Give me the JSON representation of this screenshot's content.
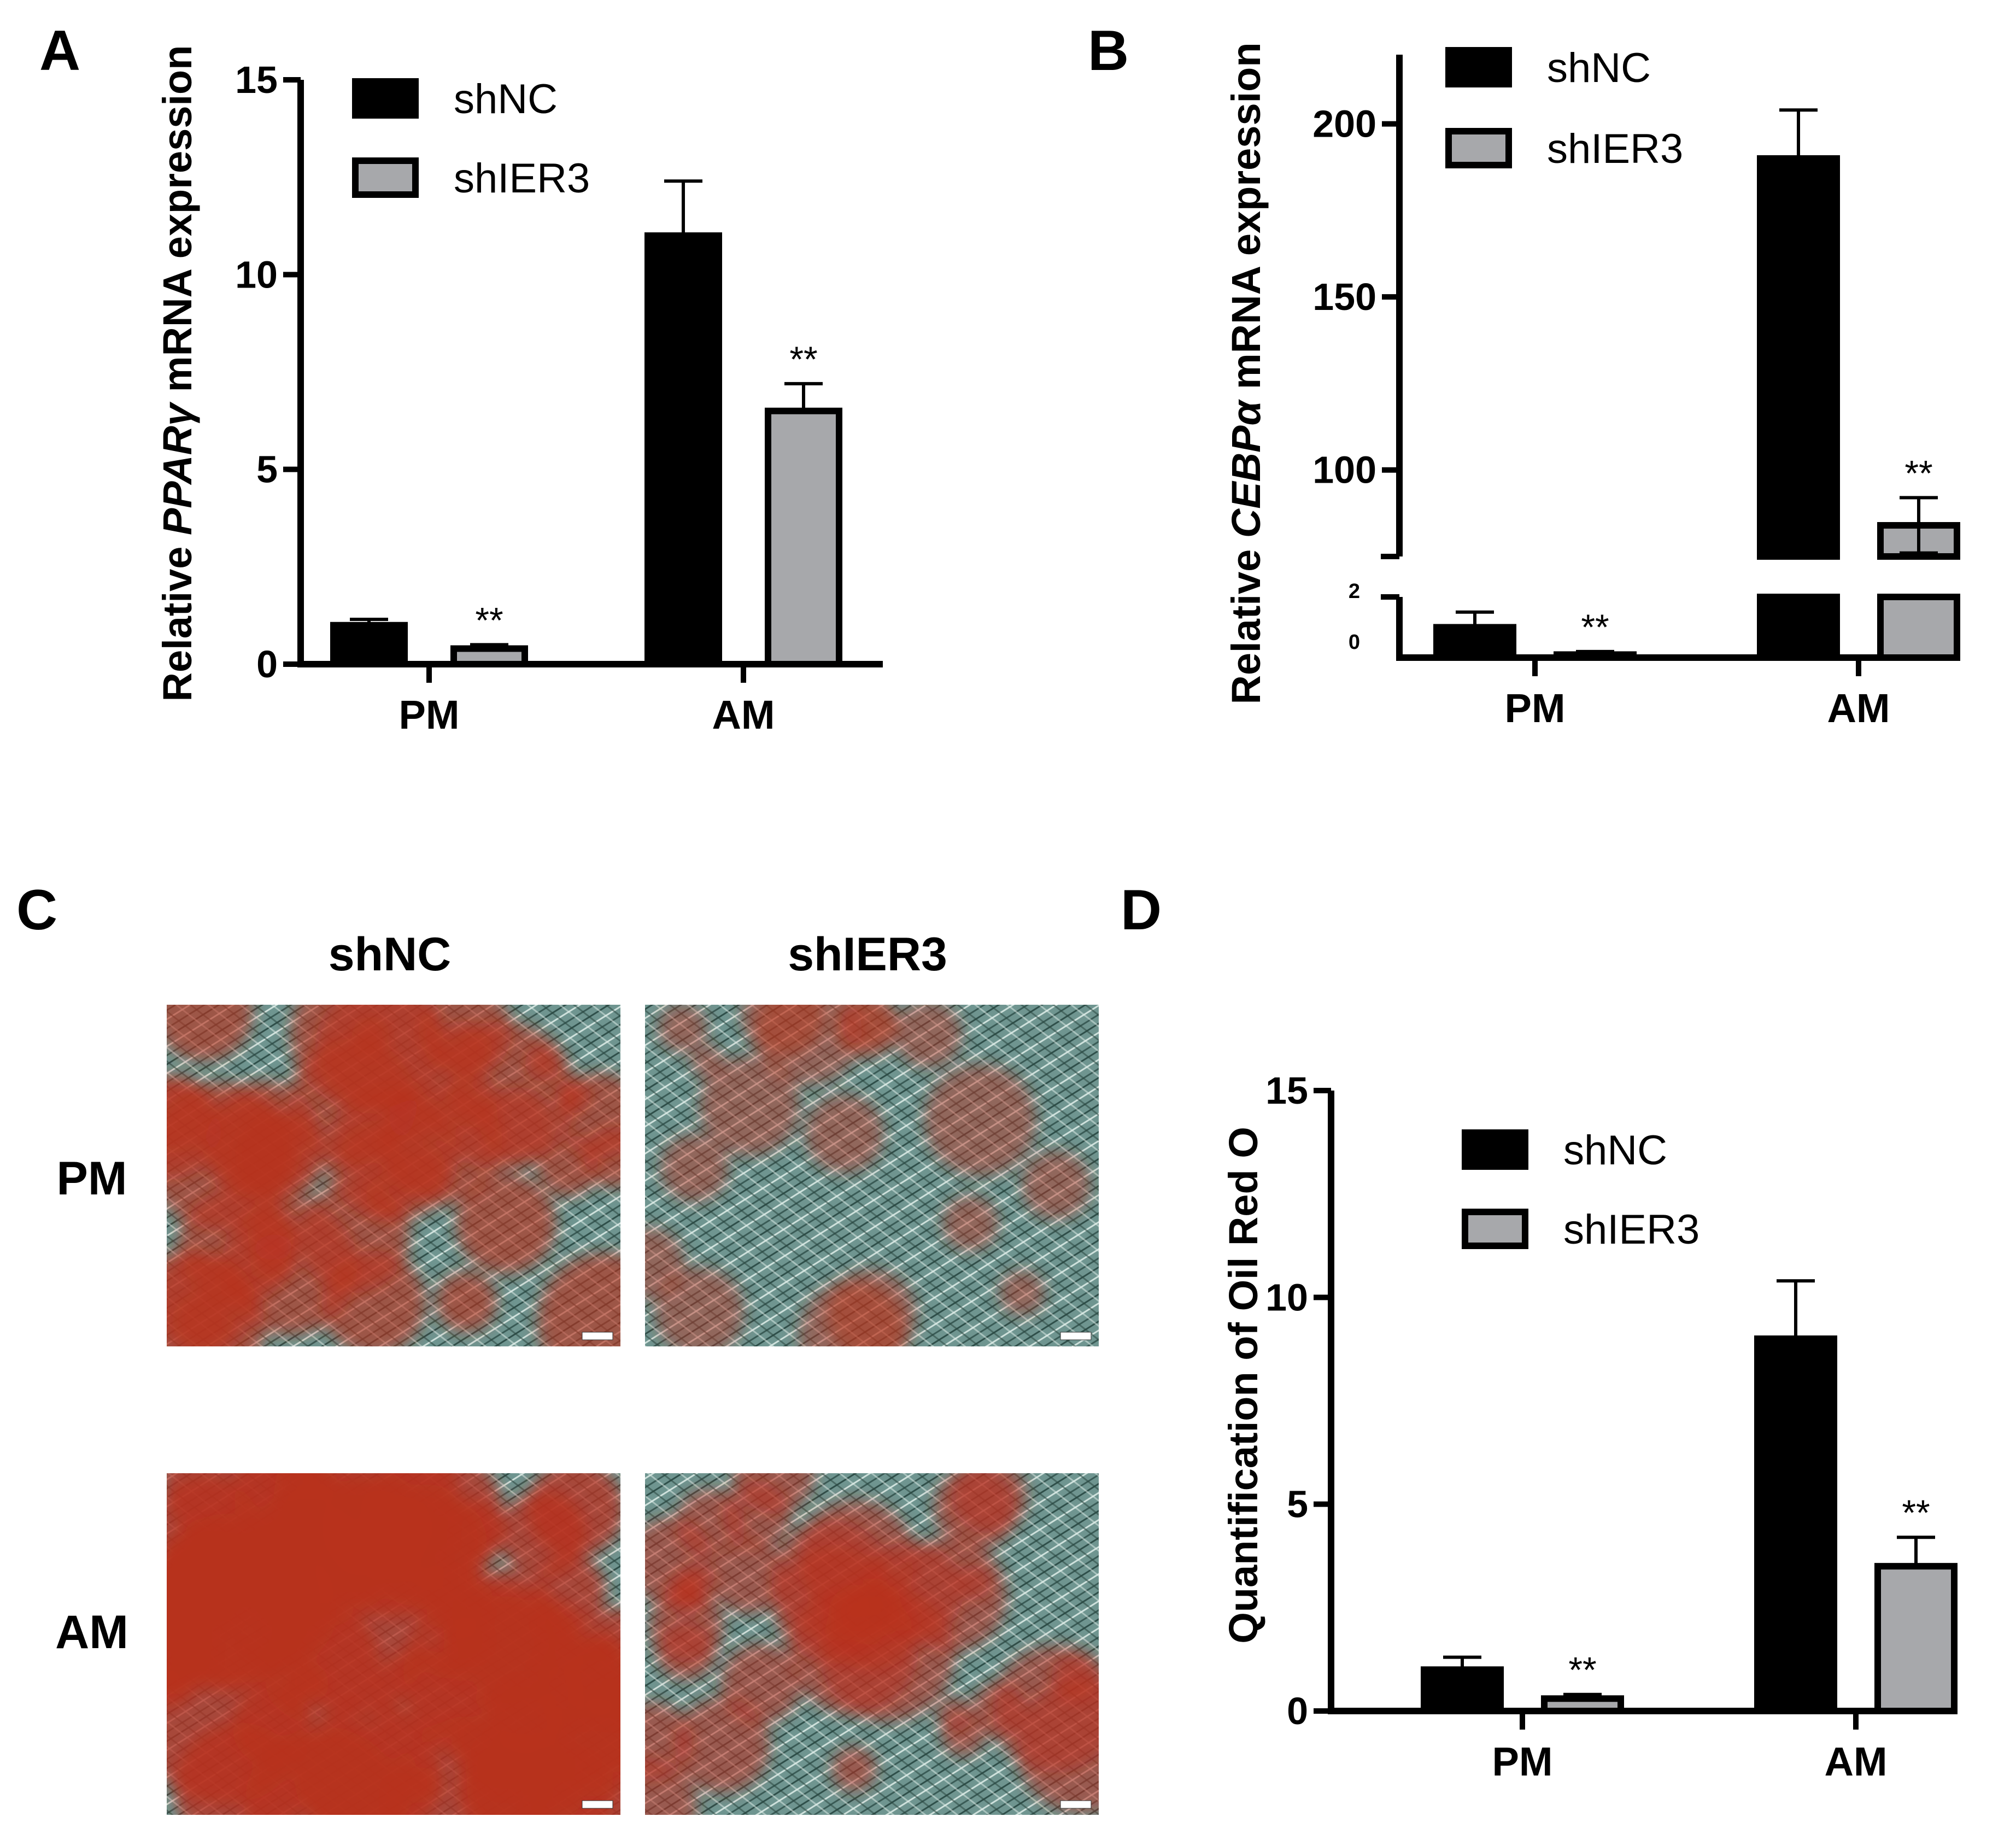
{
  "chart_data": [
    {
      "panel": "A",
      "type": "bar",
      "ylabel_prefix": "Relative ",
      "ylabel_italic": "PPARγ",
      "ylabel_suffix": " mRNA expression",
      "categories": [
        "PM",
        "AM"
      ],
      "ylim": [
        0,
        15
      ],
      "yticks": [
        "0",
        "5",
        "10",
        "15"
      ],
      "series": [
        {
          "name": "shNC",
          "values": [
            1.0,
            11.0
          ],
          "errors": [
            0.15,
            1.4
          ],
          "significance": [
            "",
            ""
          ]
        },
        {
          "name": "shIER3",
          "values": [
            0.4,
            6.5
          ],
          "errors": [
            0.1,
            0.7
          ],
          "significance": [
            "**",
            "**"
          ]
        }
      ],
      "legend_position": "top-left"
    },
    {
      "panel": "B",
      "type": "bar",
      "ylabel_prefix": "Relative ",
      "ylabel_italic": "CEBPα",
      "ylabel_suffix": " mRNA expression",
      "categories": [
        "PM",
        "AM"
      ],
      "broken_axis": {
        "lower_range": [
          0,
          2
        ],
        "upper_range": [
          75,
          220
        ]
      },
      "yticks_upper": [
        "100",
        "150",
        "200"
      ],
      "yticks_lower": [
        "0",
        "2"
      ],
      "series": [
        {
          "name": "shNC",
          "values": [
            1.0,
            190
          ],
          "errors": [
            0.5,
            14
          ],
          "significance": [
            "",
            ""
          ]
        },
        {
          "name": "shIER3",
          "values": [
            0.1,
            84
          ],
          "errors": [
            0.1,
            8
          ],
          "significance": [
            "**",
            "**"
          ]
        }
      ],
      "legend_position": "top-left"
    },
    {
      "panel": "D",
      "type": "bar",
      "ylabel": "Quantification of Oil Red O",
      "categories": [
        "PM",
        "AM"
      ],
      "ylim": [
        0,
        15
      ],
      "yticks": [
        "0",
        "5",
        "10",
        "15"
      ],
      "series": [
        {
          "name": "shNC",
          "values": [
            1.0,
            9.0
          ],
          "errors": [
            0.3,
            1.4
          ],
          "significance": [
            "",
            ""
          ]
        },
        {
          "name": "shIER3",
          "values": [
            0.3,
            3.5
          ],
          "errors": [
            0.1,
            0.7
          ],
          "significance": [
            "**",
            "**"
          ]
        }
      ],
      "legend_position": "top-left"
    }
  ],
  "panel_labels": {
    "a": "A",
    "b": "B",
    "c": "C",
    "d": "D"
  },
  "panel_c": {
    "columns": [
      "shNC",
      "shIER3"
    ],
    "rows": [
      "PM",
      "AM"
    ],
    "stain_levels": [
      [
        0.55,
        0.25
      ],
      [
        0.85,
        0.45
      ]
    ]
  },
  "colors": {
    "shNC": "#000000",
    "shIER3": "#a7a8ab",
    "stain": "#b8321f",
    "cells": "#5e8a84"
  }
}
